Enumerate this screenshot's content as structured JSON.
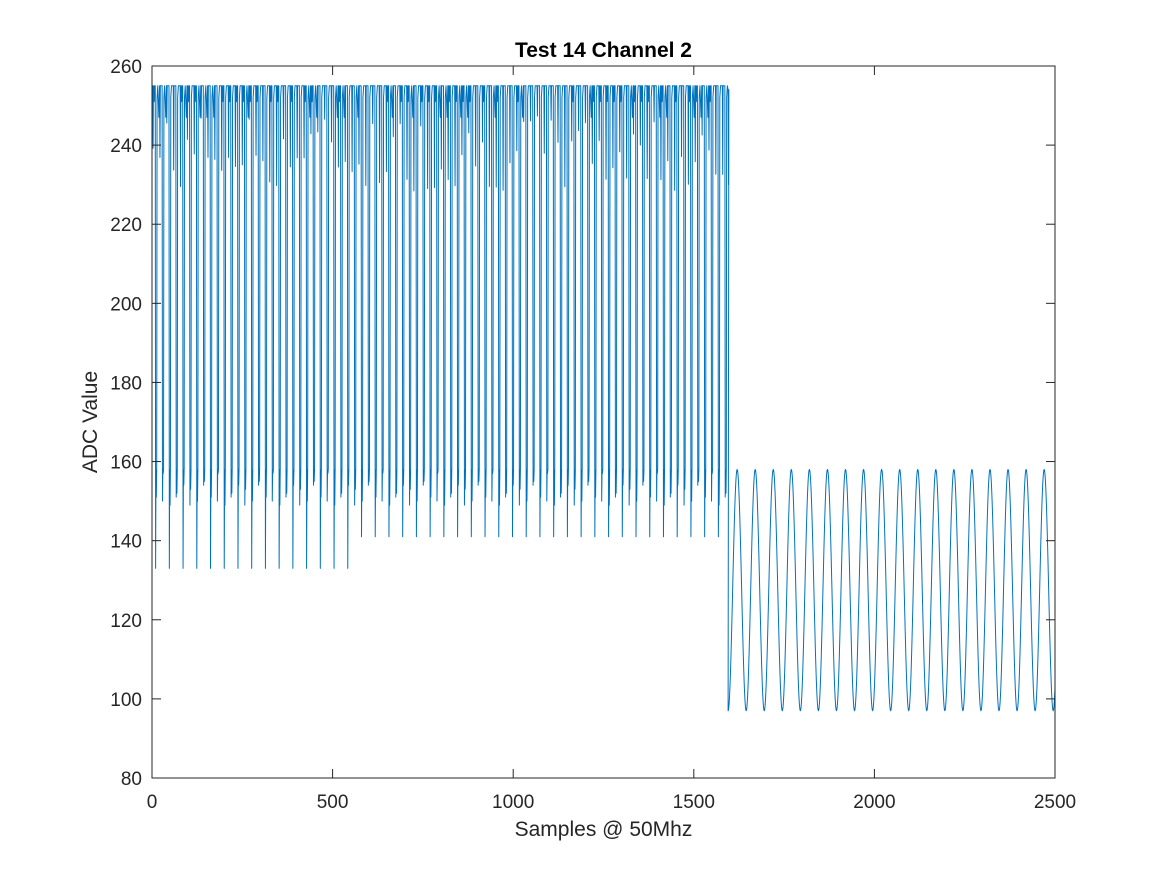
{
  "chart_data": {
    "type": "line",
    "title": "Test 14 Channel 2",
    "xlabel": "Samples @ 50Mhz",
    "ylabel": "ADC Value",
    "xlim": [
      0,
      2500
    ],
    "ylim": [
      80,
      260
    ],
    "xticks": [
      0,
      500,
      1000,
      1500,
      2000,
      2500
    ],
    "yticks": [
      80,
      100,
      120,
      140,
      160,
      180,
      200,
      220,
      240,
      260
    ],
    "grid": false,
    "legend": "none",
    "series": [
      {
        "color": "#0072BD",
        "segments": [
          {
            "description_range": [
              0,
              1595
            ],
            "pattern": "dense saturated square-like pulses",
            "high": 255,
            "shelf": 158,
            "low_first_region": 133,
            "low_second_region": 141,
            "region_boundary_x": 570,
            "pulse_period": 19
          },
          {
            "description_range": [
              1595,
              2500
            ],
            "pattern": "sinusoid",
            "high": 158,
            "low": 97,
            "period": 50
          }
        ]
      }
    ]
  }
}
